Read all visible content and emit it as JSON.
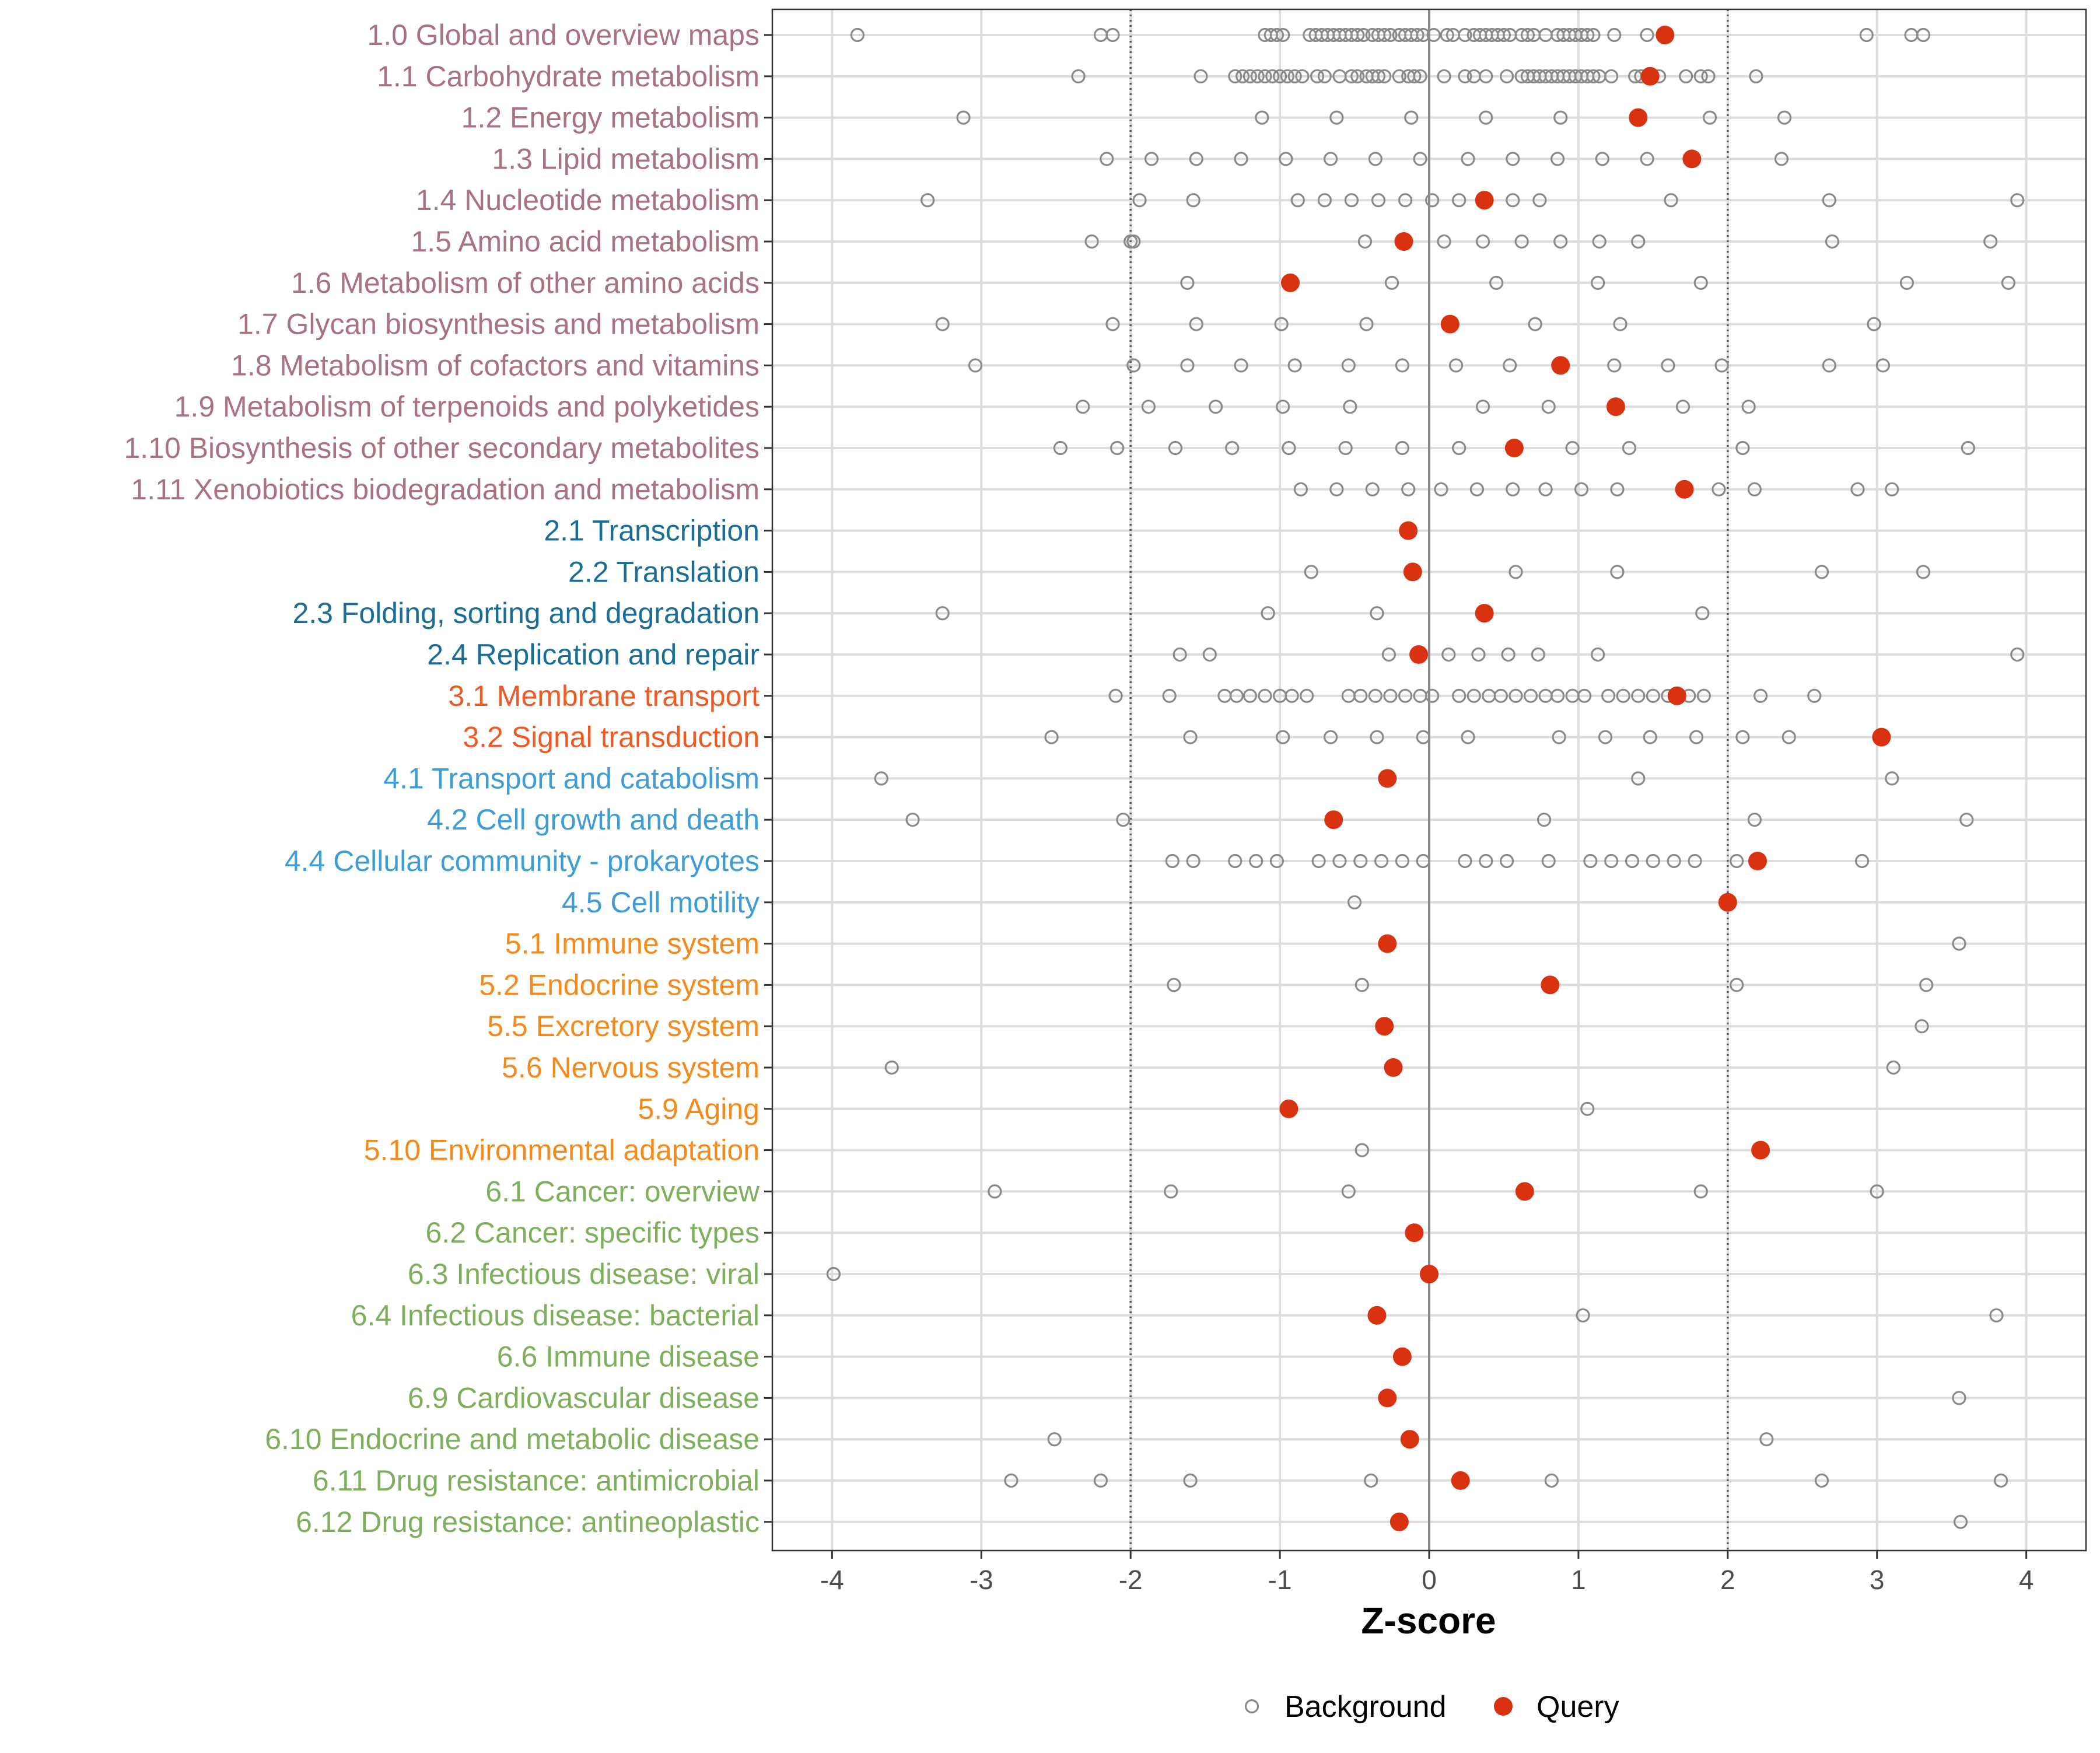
{
  "chart_data": {
    "type": "scatter",
    "title": "",
    "xlabel": "Z-score",
    "ylabel": "",
    "xlim": [
      -4.4,
      4.4
    ],
    "xticks": [
      -4,
      -3,
      -2,
      -1,
      0,
      1,
      2,
      3,
      4
    ],
    "reference_lines": [
      {
        "x": -2,
        "style": "dotted"
      },
      {
        "x": 0,
        "style": "solid"
      },
      {
        "x": 2,
        "style": "dotted"
      }
    ],
    "grid": true,
    "legend": {
      "position": "bottom",
      "entries": [
        {
          "label": "Background",
          "marker": "open-circle",
          "color": "#8a8a8a"
        },
        {
          "label": "Query",
          "marker": "filled-circle",
          "color": "#d93211"
        }
      ]
    },
    "group_colors": {
      "1": "#a8727e",
      "2": "#1a6e96",
      "3": "#ee5a24",
      "4": "#3e9dd4",
      "5": "#f48a1c",
      "6": "#7fae5c"
    },
    "categories": [
      {
        "label": "1.0 Global and overview maps",
        "group": "1",
        "query": 1.58,
        "background": [
          -3.83,
          -2.2,
          -2.12,
          -1.1,
          -1.06,
          -1.02,
          -0.98,
          -0.8,
          -0.76,
          -0.72,
          -0.68,
          -0.64,
          -0.6,
          -0.56,
          -0.52,
          -0.48,
          -0.44,
          -0.38,
          -0.34,
          -0.3,
          -0.26,
          -0.2,
          -0.16,
          -0.12,
          -0.08,
          -0.04,
          0.03,
          0.12,
          0.16,
          0.24,
          0.3,
          0.34,
          0.38,
          0.42,
          0.46,
          0.5,
          0.54,
          0.62,
          0.66,
          0.7,
          0.78,
          0.86,
          0.9,
          0.94,
          0.98,
          1.02,
          1.06,
          1.1,
          1.24,
          1.46,
          2.93,
          3.23,
          3.31
        ]
      },
      {
        "label": "1.1 Carbohydrate metabolism",
        "group": "1",
        "query": 1.48,
        "background": [
          -2.35,
          -1.53,
          -1.3,
          -1.25,
          -1.2,
          -1.15,
          -1.1,
          -1.05,
          -1.0,
          -0.95,
          -0.9,
          -0.85,
          -0.75,
          -0.7,
          -0.6,
          -0.52,
          -0.48,
          -0.42,
          -0.38,
          -0.34,
          -0.3,
          -0.2,
          -0.14,
          -0.1,
          -0.06,
          0.1,
          0.24,
          0.3,
          0.38,
          0.52,
          0.62,
          0.66,
          0.7,
          0.74,
          0.78,
          0.82,
          0.86,
          0.9,
          0.94,
          0.98,
          1.02,
          1.06,
          1.1,
          1.14,
          1.22,
          1.38,
          1.42,
          1.54,
          1.72,
          1.82,
          1.87,
          2.19
        ]
      },
      {
        "label": "1.2 Energy metabolism",
        "group": "1",
        "query": 1.4,
        "background": [
          -3.12,
          -1.12,
          -0.62,
          -0.12,
          0.38,
          0.88,
          1.88,
          2.38
        ]
      },
      {
        "label": "1.3 Lipid metabolism",
        "group": "1",
        "query": 1.76,
        "background": [
          -2.16,
          -1.86,
          -1.56,
          -1.26,
          -0.96,
          -0.66,
          -0.36,
          -0.06,
          0.26,
          0.56,
          0.86,
          1.16,
          1.46,
          2.36
        ]
      },
      {
        "label": "1.4 Nucleotide metabolism",
        "group": "1",
        "query": 0.37,
        "background": [
          -3.36,
          -1.94,
          -1.58,
          -0.88,
          -0.7,
          -0.52,
          -0.34,
          -0.16,
          0.02,
          0.2,
          0.56,
          0.74,
          1.62,
          2.68,
          3.94
        ]
      },
      {
        "label": "1.5 Amino acid metabolism",
        "group": "1",
        "query": -0.17,
        "background": [
          -2.26,
          -2.0,
          -1.98,
          -0.43,
          0.1,
          0.36,
          0.62,
          0.88,
          1.14,
          1.4,
          2.7,
          3.76
        ]
      },
      {
        "label": "1.6 Metabolism of other amino acids",
        "group": "1",
        "query": -0.93,
        "background": [
          -1.62,
          -0.25,
          0.45,
          1.13,
          1.82,
          3.2,
          3.88
        ]
      },
      {
        "label": "1.7 Glycan biosynthesis and metabolism",
        "group": "1",
        "query": 0.14,
        "background": [
          -3.26,
          -2.12,
          -1.56,
          -0.99,
          -0.42,
          0.71,
          1.28,
          2.98
        ]
      },
      {
        "label": "1.8 Metabolism of cofactors and vitamins",
        "group": "1",
        "query": 0.88,
        "background": [
          -3.04,
          -1.98,
          -1.62,
          -1.26,
          -0.9,
          -0.54,
          -0.18,
          0.18,
          0.54,
          1.24,
          1.6,
          1.96,
          2.68,
          3.04
        ]
      },
      {
        "label": "1.9 Metabolism of terpenoids and polyketides",
        "group": "1",
        "query": 1.25,
        "background": [
          -2.32,
          -1.88,
          -1.43,
          -0.98,
          -0.53,
          0.36,
          0.8,
          1.7,
          2.14
        ]
      },
      {
        "label": "1.10 Biosynthesis of other secondary metabolites",
        "group": "1",
        "query": 0.57,
        "background": [
          -2.47,
          -2.09,
          -1.7,
          -1.32,
          -0.94,
          -0.56,
          -0.18,
          0.2,
          0.96,
          1.34,
          2.1,
          3.61
        ]
      },
      {
        "label": "1.11 Xenobiotics biodegradation and metabolism",
        "group": "1",
        "query": 1.71,
        "background": [
          -0.86,
          -0.62,
          -0.38,
          -0.14,
          0.08,
          0.32,
          0.56,
          0.78,
          1.02,
          1.26,
          1.94,
          2.18,
          2.87,
          3.1
        ]
      },
      {
        "label": "2.1 Transcription",
        "group": "2",
        "query": -0.14,
        "background": []
      },
      {
        "label": "2.2 Translation",
        "group": "2",
        "query": -0.11,
        "background": [
          -0.79,
          0.58,
          1.26,
          2.63,
          3.31
        ]
      },
      {
        "label": "2.3 Folding, sorting and degradation",
        "group": "2",
        "query": 0.37,
        "background": [
          -3.26,
          -1.08,
          -0.35,
          1.83
        ]
      },
      {
        "label": "2.4 Replication and repair",
        "group": "2",
        "query": -0.07,
        "background": [
          -1.67,
          -1.47,
          -0.27,
          0.13,
          0.33,
          0.53,
          0.73,
          1.13,
          3.94
        ]
      },
      {
        "label": "3.1 Membrane transport",
        "group": "3",
        "query": 1.66,
        "background": [
          -2.1,
          -1.74,
          -1.37,
          -1.29,
          -1.2,
          -1.1,
          -1.0,
          -0.92,
          -0.82,
          -0.54,
          -0.46,
          -0.36,
          -0.26,
          -0.16,
          -0.06,
          0.02,
          0.2,
          0.3,
          0.4,
          0.48,
          0.58,
          0.68,
          0.78,
          0.86,
          0.96,
          1.04,
          1.2,
          1.3,
          1.4,
          1.5,
          1.6,
          1.74,
          1.84,
          2.22,
          2.58
        ]
      },
      {
        "label": "3.2 Signal transduction",
        "group": "3",
        "query": 3.03,
        "background": [
          -2.53,
          -1.6,
          -0.98,
          -0.66,
          -0.35,
          -0.04,
          0.26,
          0.87,
          1.18,
          1.48,
          1.79,
          2.1,
          2.41
        ]
      },
      {
        "label": "4.1 Transport and catabolism",
        "group": "4",
        "query": -0.28,
        "background": [
          -3.67,
          1.4,
          3.1
        ]
      },
      {
        "label": "4.2 Cell growth and death",
        "group": "4",
        "query": -0.64,
        "background": [
          -3.46,
          -2.05,
          0.77,
          2.18,
          3.6
        ]
      },
      {
        "label": "4.4 Cellular community - prokaryotes",
        "group": "4",
        "query": 2.2,
        "background": [
          -1.72,
          -1.58,
          -1.3,
          -1.16,
          -1.02,
          -0.74,
          -0.6,
          -0.46,
          -0.32,
          -0.18,
          -0.04,
          0.24,
          0.38,
          0.52,
          0.8,
          1.08,
          1.22,
          1.36,
          1.5,
          1.64,
          1.78,
          2.06,
          2.9
        ]
      },
      {
        "label": "4.5 Cell motility",
        "group": "4",
        "query": 2.0,
        "background": [
          -0.5
        ]
      },
      {
        "label": "5.1 Immune system",
        "group": "5",
        "query": -0.28,
        "background": [
          3.55
        ]
      },
      {
        "label": "5.2 Endocrine system",
        "group": "5",
        "query": 0.81,
        "background": [
          -1.71,
          -0.45,
          2.06,
          3.33
        ]
      },
      {
        "label": "5.5 Excretory system",
        "group": "5",
        "query": -0.3,
        "background": [
          3.3
        ]
      },
      {
        "label": "5.6 Nervous system",
        "group": "5",
        "query": -0.24,
        "background": [
          -3.6,
          3.11
        ]
      },
      {
        "label": "5.9 Aging",
        "group": "5",
        "query": -0.94,
        "background": [
          1.06
        ]
      },
      {
        "label": "5.10 Environmental adaptation",
        "group": "5",
        "query": 2.22,
        "background": [
          -0.45
        ]
      },
      {
        "label": "6.1 Cancer: overview",
        "group": "6",
        "query": 0.64,
        "background": [
          -2.91,
          -1.73,
          -0.54,
          1.82,
          3.0
        ]
      },
      {
        "label": "6.2 Cancer: specific types",
        "group": "6",
        "query": -0.1,
        "background": []
      },
      {
        "label": "6.3 Infectious disease: viral",
        "group": "6",
        "query": 0.0,
        "background": [
          -3.99
        ]
      },
      {
        "label": "6.4 Infectious disease: bacterial",
        "group": "6",
        "query": -0.35,
        "background": [
          1.03,
          3.8
        ]
      },
      {
        "label": "6.6 Immune disease",
        "group": "6",
        "query": -0.18,
        "background": []
      },
      {
        "label": "6.9 Cardiovascular disease",
        "group": "6",
        "query": -0.28,
        "background": [
          3.55
        ]
      },
      {
        "label": "6.10 Endocrine and metabolic disease",
        "group": "6",
        "query": -0.13,
        "background": [
          -2.51,
          2.26
        ]
      },
      {
        "label": "6.11 Drug resistance: antimicrobial",
        "group": "6",
        "query": 0.21,
        "background": [
          -2.8,
          -2.2,
          -1.6,
          -0.39,
          0.82,
          2.63,
          3.83
        ]
      },
      {
        "label": "6.12 Drug resistance: antineoplastic",
        "group": "6",
        "query": -0.2,
        "background": [
          3.56
        ]
      }
    ]
  }
}
